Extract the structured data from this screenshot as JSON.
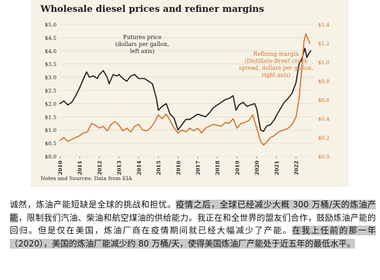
{
  "figure": {
    "title": "Wholesale diesel prices and refiner margins",
    "note": "Notes and Sources: Data from EIA",
    "futures_annotation": [
      "Futures price",
      "(dollars per gallon,",
      "left axis)"
    ],
    "refining_annotation": [
      "Refining margin",
      "(Distillate-Brent crack",
      "spread, dollars per gallon,",
      "right axis)"
    ]
  },
  "chart_data": {
    "type": "line",
    "title": "Wholesale diesel prices and refiner margins",
    "x_ticks": [
      "2010",
      "2011",
      "2012",
      "2013",
      "2014",
      "2015",
      "2016",
      "2017",
      "2018",
      "2019",
      "2020",
      "2021",
      "2022"
    ],
    "xlim": [
      2010,
      2022.9
    ],
    "y_left_ticks": [
      "$0.0",
      "$0.5",
      "$1.0",
      "$1.5",
      "$2.0",
      "$2.5",
      "$3.0",
      "$3.5",
      "$4.0",
      "$4.5",
      "$5.0"
    ],
    "ylim_left": [
      0,
      5
    ],
    "y_right_ticks": [
      "$0.0",
      "$0.2",
      "$0.4",
      "$0.6",
      "$0.8",
      "$1.0",
      "$1.2",
      "$1.4"
    ],
    "ylim_right": [
      0,
      1.4
    ],
    "grid": "horizontal",
    "series": [
      {
        "name": "Futures price",
        "axis": "left",
        "color": "#1c1c1c",
        "points": [
          [
            2010.0,
            2.0
          ],
          [
            2010.2,
            2.1
          ],
          [
            2010.4,
            1.95
          ],
          [
            2010.6,
            2.05
          ],
          [
            2010.8,
            2.3
          ],
          [
            2011.0,
            2.6
          ],
          [
            2011.2,
            2.95
          ],
          [
            2011.35,
            3.2
          ],
          [
            2011.5,
            3.0
          ],
          [
            2011.7,
            3.05
          ],
          [
            2011.9,
            2.95
          ],
          [
            2012.0,
            3.1
          ],
          [
            2012.2,
            3.25
          ],
          [
            2012.4,
            3.0
          ],
          [
            2012.5,
            2.75
          ],
          [
            2012.7,
            3.1
          ],
          [
            2012.9,
            3.05
          ],
          [
            2013.0,
            3.1
          ],
          [
            2013.2,
            2.95
          ],
          [
            2013.4,
            2.85
          ],
          [
            2013.6,
            3.05
          ],
          [
            2013.8,
            3.1
          ],
          [
            2014.0,
            2.95
          ],
          [
            2014.3,
            2.95
          ],
          [
            2014.5,
            2.85
          ],
          [
            2014.7,
            2.75
          ],
          [
            2014.9,
            2.2
          ],
          [
            2015.0,
            1.75
          ],
          [
            2015.2,
            1.9
          ],
          [
            2015.4,
            2.0
          ],
          [
            2015.6,
            1.6
          ],
          [
            2015.8,
            1.45
          ],
          [
            2016.0,
            1.0
          ],
          [
            2016.2,
            1.2
          ],
          [
            2016.4,
            1.4
          ],
          [
            2016.6,
            1.4
          ],
          [
            2016.8,
            1.5
          ],
          [
            2017.0,
            1.6
          ],
          [
            2017.2,
            1.55
          ],
          [
            2017.4,
            1.5
          ],
          [
            2017.6,
            1.65
          ],
          [
            2017.8,
            1.85
          ],
          [
            2018.0,
            1.95
          ],
          [
            2018.2,
            2.05
          ],
          [
            2018.4,
            2.15
          ],
          [
            2018.6,
            2.2
          ],
          [
            2018.8,
            2.3
          ],
          [
            2018.95,
            1.75
          ],
          [
            2019.1,
            1.95
          ],
          [
            2019.3,
            2.05
          ],
          [
            2019.5,
            1.9
          ],
          [
            2019.7,
            1.95
          ],
          [
            2019.9,
            2.0
          ],
          [
            2020.0,
            1.8
          ],
          [
            2020.2,
            1.0
          ],
          [
            2020.35,
            0.95
          ],
          [
            2020.5,
            1.15
          ],
          [
            2020.7,
            1.2
          ],
          [
            2020.9,
            1.4
          ],
          [
            2021.0,
            1.55
          ],
          [
            2021.2,
            1.8
          ],
          [
            2021.4,
            2.05
          ],
          [
            2021.6,
            2.2
          ],
          [
            2021.8,
            2.4
          ],
          [
            2022.0,
            2.8
          ],
          [
            2022.15,
            3.5
          ],
          [
            2022.3,
            3.7
          ],
          [
            2022.45,
            4.1
          ],
          [
            2022.55,
            3.75
          ],
          [
            2022.65,
            3.9
          ],
          [
            2022.75,
            4.0
          ]
        ]
      },
      {
        "name": "Refining margin",
        "axis": "right",
        "color": "#d4732b",
        "points": [
          [
            2010.0,
            0.17
          ],
          [
            2010.2,
            0.2
          ],
          [
            2010.4,
            0.16
          ],
          [
            2010.6,
            0.18
          ],
          [
            2010.8,
            0.2
          ],
          [
            2011.0,
            0.22
          ],
          [
            2011.2,
            0.25
          ],
          [
            2011.4,
            0.26
          ],
          [
            2011.6,
            0.35
          ],
          [
            2011.8,
            0.33
          ],
          [
            2012.0,
            0.3
          ],
          [
            2012.2,
            0.32
          ],
          [
            2012.4,
            0.27
          ],
          [
            2012.6,
            0.34
          ],
          [
            2012.8,
            0.37
          ],
          [
            2013.0,
            0.33
          ],
          [
            2013.2,
            0.27
          ],
          [
            2013.4,
            0.3
          ],
          [
            2013.6,
            0.26
          ],
          [
            2013.8,
            0.32
          ],
          [
            2014.0,
            0.34
          ],
          [
            2014.2,
            0.28
          ],
          [
            2014.4,
            0.27
          ],
          [
            2014.6,
            0.3
          ],
          [
            2014.8,
            0.36
          ],
          [
            2015.0,
            0.44
          ],
          [
            2015.2,
            0.4
          ],
          [
            2015.4,
            0.45
          ],
          [
            2015.6,
            0.38
          ],
          [
            2015.8,
            0.3
          ],
          [
            2016.0,
            0.25
          ],
          [
            2016.2,
            0.28
          ],
          [
            2016.4,
            0.26
          ],
          [
            2016.6,
            0.3
          ],
          [
            2016.8,
            0.27
          ],
          [
            2017.0,
            0.3
          ],
          [
            2017.2,
            0.25
          ],
          [
            2017.4,
            0.3
          ],
          [
            2017.6,
            0.32
          ],
          [
            2017.8,
            0.34
          ],
          [
            2018.0,
            0.33
          ],
          [
            2018.2,
            0.32
          ],
          [
            2018.4,
            0.36
          ],
          [
            2018.6,
            0.35
          ],
          [
            2018.8,
            0.4
          ],
          [
            2019.0,
            0.3
          ],
          [
            2019.2,
            0.35
          ],
          [
            2019.4,
            0.36
          ],
          [
            2019.6,
            0.38
          ],
          [
            2019.8,
            0.44
          ],
          [
            2020.0,
            0.3
          ],
          [
            2020.2,
            0.16
          ],
          [
            2020.35,
            0.12
          ],
          [
            2020.5,
            0.15
          ],
          [
            2020.7,
            0.2
          ],
          [
            2020.9,
            0.22
          ],
          [
            2021.0,
            0.24
          ],
          [
            2021.2,
            0.27
          ],
          [
            2021.4,
            0.28
          ],
          [
            2021.6,
            0.3
          ],
          [
            2021.8,
            0.34
          ],
          [
            2022.0,
            0.42
          ],
          [
            2022.15,
            0.6
          ],
          [
            2022.3,
            0.95
          ],
          [
            2022.4,
            1.22
          ],
          [
            2022.5,
            1.3
          ],
          [
            2022.6,
            1.25
          ],
          [
            2022.7,
            1.2
          ]
        ]
      }
    ]
  },
  "paragraph": {
    "plain_1": "诚然，炼油产能短缺是全球的挑战和担忧。",
    "highlight_1": "疫情之后，全球已经减少大概 300 万桶/天的炼油产能",
    "plain_2": "，限制我们汽油、柴油和航空煤油的供给能力。我正在和全世界的盟友们合作，鼓励炼油产能的回归。但是仅在美国，炼油厂商在疫情期间就已经大幅减少了产能。",
    "highlight_2": "在我上任前的那一年（2020），美国的炼油厂能减少约 80 万桶/天，使得美国炼油厂产能处于近五年的最低水平。"
  }
}
